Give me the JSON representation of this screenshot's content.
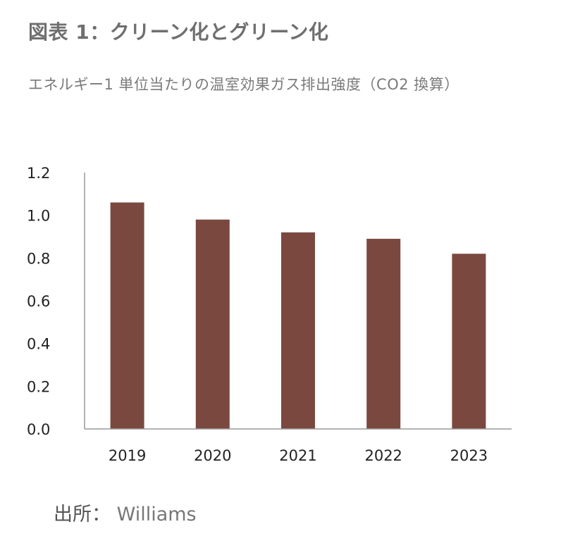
{
  "title": "図表 1：クリーン化とグリーン化",
  "subtitle": "エネルギー1 単位当たりの温室効果ガス排出強度（CO2 換算）",
  "source": {
    "label": "出所：",
    "name": "Williams"
  },
  "colors": {
    "bar": "#7b4840",
    "axis": "#9a9a9a",
    "text": "#222222"
  },
  "chart_data": {
    "type": "bar",
    "title": "",
    "xlabel": "",
    "ylabel": "",
    "categories": [
      "2019",
      "2020",
      "2021",
      "2022",
      "2023"
    ],
    "values": [
      1.06,
      0.98,
      0.92,
      0.89,
      0.82
    ],
    "ylim": [
      0,
      1.2
    ],
    "yticks": [
      "0.0",
      "0.2",
      "0.4",
      "0.6",
      "0.8",
      "1.0",
      "1.2"
    ],
    "grid": false,
    "legend": "none"
  }
}
